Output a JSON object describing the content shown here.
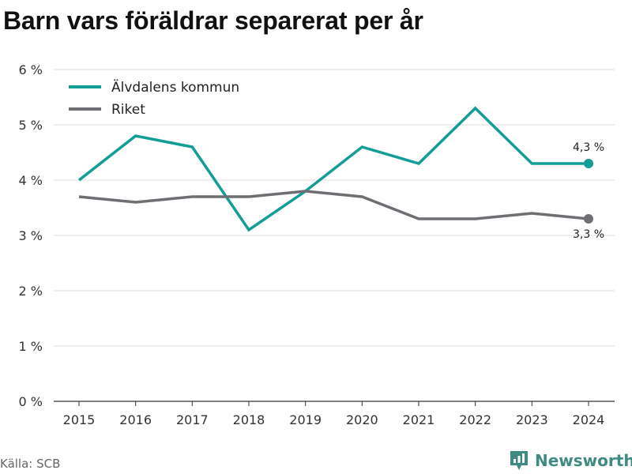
{
  "chart_data": {
    "type": "line",
    "title": "Barn vars föräldrar separerat per år",
    "xlabel": "",
    "ylabel": "",
    "x": [
      "2015",
      "2016",
      "2017",
      "2018",
      "2019",
      "2020",
      "2021",
      "2022",
      "2023",
      "2024"
    ],
    "ylim": [
      0,
      6
    ],
    "yticks": [
      "0 %",
      "1 %",
      "2 %",
      "3 %",
      "4 %",
      "5 %",
      "6 %"
    ],
    "grid": true,
    "legend_position": "top-left",
    "series": [
      {
        "name": "Älvdalens kommun",
        "color": "#129e96",
        "values": [
          4.0,
          4.8,
          4.6,
          3.1,
          3.8,
          4.6,
          4.3,
          5.3,
          4.3,
          4.3
        ],
        "end_label": "4,3 %"
      },
      {
        "name": "Riket",
        "color": "#6e6e73",
        "values": [
          3.7,
          3.6,
          3.7,
          3.7,
          3.8,
          3.7,
          3.3,
          3.3,
          3.4,
          3.3
        ],
        "end_label": "3,3 %"
      }
    ]
  },
  "footer": {
    "source": "Källa: SCB",
    "brand": "Newsworthy",
    "brand_icon": "newsworthy-logo-icon"
  }
}
